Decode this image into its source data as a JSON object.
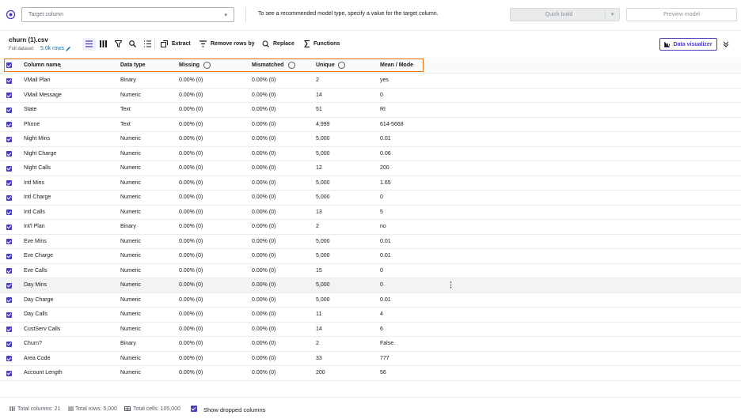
{
  "header": {
    "target_placeholder": "Target column",
    "message": "To see a recommended model type, specify a value for the target column.",
    "quick_build": "Quick build",
    "preview_model": "Preview model"
  },
  "dataset": {
    "file_name": "churn (1).csv",
    "full_dataset_label": "Full dataset:",
    "rows_link": "5.0k rows"
  },
  "toolbar": {
    "extract": "Extract",
    "remove_rows": "Remove rows by",
    "replace": "Replace",
    "functions": "Functions",
    "data_visualizer": "Data visualizer"
  },
  "table": {
    "columns": [
      "Column name",
      "Data type",
      "Missing",
      "Mismatched",
      "Unique",
      "Mean / Mode"
    ],
    "rows": [
      [
        "VMail Plan",
        "Binary",
        "0.00% (0)",
        "0.00% (0)",
        "2",
        "yes"
      ],
      [
        "VMail Message",
        "Numeric",
        "0.00% (0)",
        "0.00% (0)",
        "14",
        "0"
      ],
      [
        "State",
        "Text",
        "0.00% (0)",
        "0.00% (0)",
        "51",
        "RI"
      ],
      [
        "Phone",
        "Text",
        "0.00% (0)",
        "0.00% (0)",
        "4,999",
        "614-5668"
      ],
      [
        "Night Mins",
        "Numeric",
        "0.00% (0)",
        "0.00% (0)",
        "5,000",
        "0.01"
      ],
      [
        "Night Charge",
        "Numeric",
        "0.00% (0)",
        "0.00% (0)",
        "5,000",
        "0.06"
      ],
      [
        "Night Calls",
        "Numeric",
        "0.00% (0)",
        "0.00% (0)",
        "12",
        "200"
      ],
      [
        "Intl Mins",
        "Numeric",
        "0.00% (0)",
        "0.00% (0)",
        "5,000",
        "1.65"
      ],
      [
        "Intl Charge",
        "Numeric",
        "0.00% (0)",
        "0.00% (0)",
        "5,000",
        "0"
      ],
      [
        "Intl Calls",
        "Numeric",
        "0.00% (0)",
        "0.00% (0)",
        "13",
        "5"
      ],
      [
        "Int'l Plan",
        "Binary",
        "0.00% (0)",
        "0.00% (0)",
        "2",
        "no"
      ],
      [
        "Eve Mins",
        "Numeric",
        "0.00% (0)",
        "0.00% (0)",
        "5,000",
        "0.01"
      ],
      [
        "Eve Charge",
        "Numeric",
        "0.00% (0)",
        "0.00% (0)",
        "5,000",
        "0.01"
      ],
      [
        "Eve Calls",
        "Numeric",
        "0.00% (0)",
        "0.00% (0)",
        "15",
        "0"
      ],
      [
        "Day Mins",
        "Numeric",
        "0.00% (0)",
        "0.00% (0)",
        "5,000",
        "0"
      ],
      [
        "Day Charge",
        "Numeric",
        "0.00% (0)",
        "0.00% (0)",
        "5,000",
        "0.01"
      ],
      [
        "Day Calls",
        "Numeric",
        "0.00% (0)",
        "0.00% (0)",
        "11",
        "4"
      ],
      [
        "CustServ Calls",
        "Numeric",
        "0.00% (0)",
        "0.00% (0)",
        "14",
        "6"
      ],
      [
        "Churn?",
        "Binary",
        "0.00% (0)",
        "0.00% (0)",
        "2",
        "False."
      ],
      [
        "Area Code",
        "Numeric",
        "0.00% (0)",
        "0.00% (0)",
        "33",
        "777"
      ],
      [
        "Account Length",
        "Numeric",
        "0.00% (0)",
        "0.00% (0)",
        "200",
        "56"
      ]
    ]
  },
  "footer": {
    "total_columns": "Total columns: 21",
    "total_rows": "Total rows: 5,000",
    "total_cells": "Total cells: 105,000",
    "show_dropped": "Show dropped columns"
  }
}
